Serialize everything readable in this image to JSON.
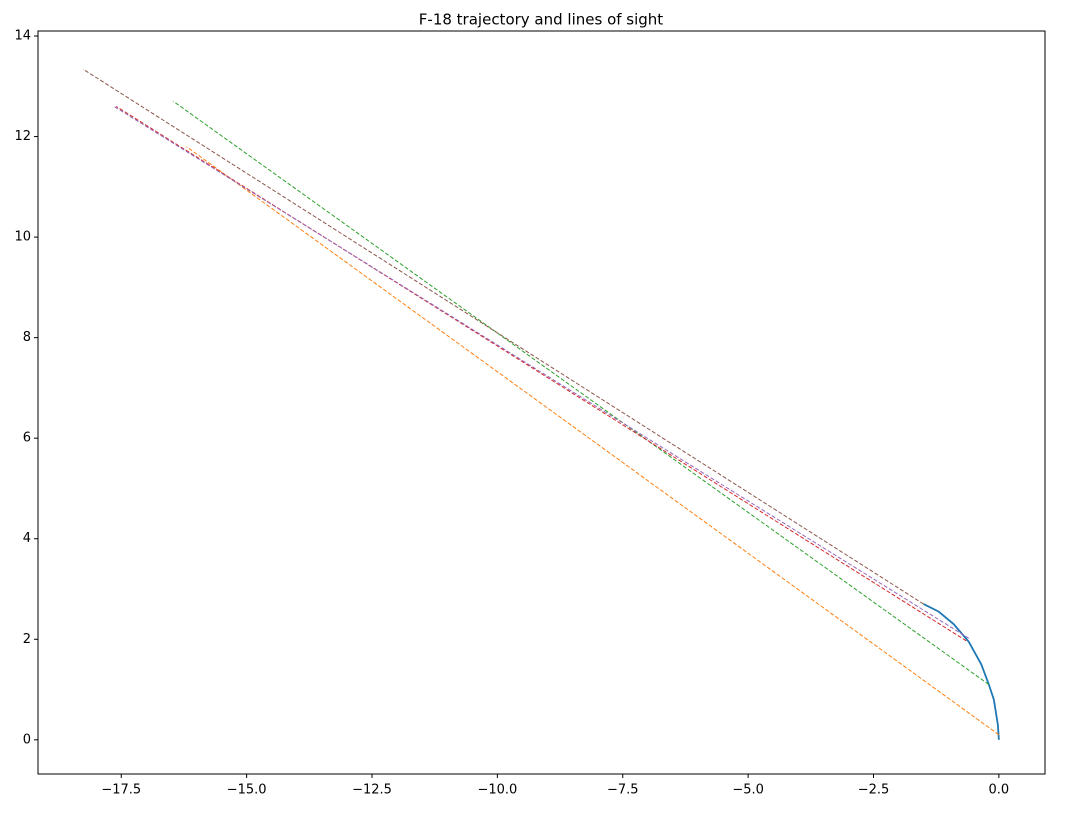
{
  "chart_data": {
    "type": "line",
    "title": "F-18 trajectory and lines of sight",
    "series": [
      {
        "color": "#1f77b4",
        "style": "solid",
        "x": [
          0,
          -0.02,
          -0.1,
          -0.2,
          -0.35,
          -0.6,
          -0.9,
          -1.2,
          -1.5
        ],
        "values": [
          0,
          0.3,
          0.8,
          1.1,
          1.5,
          1.95,
          2.3,
          2.55,
          2.7
        ]
      },
      {
        "color": "#ff7f0e",
        "style": "dashed",
        "x": [
          0,
          -16.2
        ],
        "values": [
          0.1,
          11.8
        ]
      },
      {
        "color": "#2ca02c",
        "style": "dashed",
        "x": [
          -0.2,
          -16.46
        ],
        "values": [
          1.1,
          12.7
        ]
      },
      {
        "color": "#d62728",
        "style": "dashed",
        "x": [
          -0.65,
          -17.6
        ],
        "values": [
          1.97,
          12.6
        ]
      },
      {
        "color": "#9467bd",
        "style": "dashed",
        "x": [
          -0.6,
          -17.66
        ],
        "values": [
          2.02,
          12.61
        ]
      },
      {
        "color": "#8c564b",
        "style": "dashed",
        "x": [
          -1.5,
          -18.26
        ],
        "values": [
          2.7,
          13.34
        ]
      }
    ],
    "xlim": [
      -19.16,
      0.92
    ],
    "ylim": [
      -0.68,
      14.1
    ],
    "xticks": [
      {
        "value": -17.5,
        "label": "−17.5"
      },
      {
        "value": -15,
        "label": "−15.0"
      },
      {
        "value": -12.5,
        "label": "−12.5"
      },
      {
        "value": -10,
        "label": "−10.0"
      },
      {
        "value": -7.5,
        "label": "−7.5"
      },
      {
        "value": -5,
        "label": "−5.0"
      },
      {
        "value": -2.5,
        "label": "−2.5"
      },
      {
        "value": 0,
        "label": "0.0"
      }
    ],
    "yticks": [
      0,
      2,
      4,
      6,
      8,
      10,
      12,
      14
    ],
    "grid": false
  }
}
